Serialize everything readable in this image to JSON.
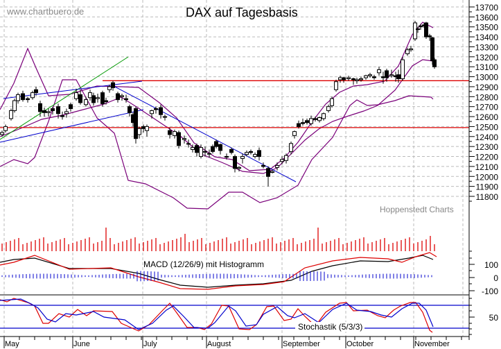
{
  "header": {
    "watermark": "www.chartbuero.de",
    "title": "DAX auf Tagesbasis",
    "source": "Hoppenstedt Charts"
  },
  "colors": {
    "candle": "#000000",
    "bollinger": "#7a007a",
    "trend_blue": "#0000cc",
    "trend_green": "#009900",
    "support_red": "#dd0000",
    "volume": "#dd0000",
    "macd_line": "#000000",
    "signal_line": "#dd0000",
    "histogram": "#0000cc",
    "stoch_k": "#dd0000",
    "stoch_d": "#0000cc",
    "grid": "#bbbbbb"
  },
  "indicators": {
    "macd_label": "MACD (12/26/9) mit Histogramm",
    "stoch_label": "Stochastik (5/3/3)"
  },
  "chart_data": {
    "type": "candlestick",
    "title": "DAX auf Tagesbasis",
    "xlabel": "",
    "ylabel": "",
    "x_ticks": [
      "May",
      "June",
      "July",
      "August",
      "September",
      "October",
      "November"
    ],
    "price_axis": {
      "ticks": [
        13700,
        13600,
        13500,
        13400,
        13300,
        13200,
        13100,
        13000,
        12900,
        12800,
        12700,
        12600,
        12500,
        12400,
        12300,
        12200,
        12100,
        12000,
        11900,
        11800
      ],
      "ylim": [
        11800,
        13700
      ],
      "grid": true
    },
    "macd_axis": {
      "ticks": [
        100,
        0,
        -100
      ]
    },
    "stoch_axis": {
      "ticks": [
        50
      ]
    },
    "horizontal_lines": [
      {
        "name": "resistance",
        "value": 12960,
        "color": "red"
      },
      {
        "name": "support",
        "value": 12490,
        "color": "red"
      }
    ],
    "price_close_approx": [
      {
        "date": "May-start",
        "close": 12430
      },
      {
        "date": "May-mid",
        "close": 12790
      },
      {
        "date": "May-end",
        "close": 12700
      },
      {
        "date": "Jun-mid",
        "close": 12800
      },
      {
        "date": "Jun-peak",
        "close": 12950
      },
      {
        "date": "Jul-start",
        "close": 12480
      },
      {
        "date": "Jul-mid",
        "close": 12600
      },
      {
        "date": "Aug-start",
        "close": 12200
      },
      {
        "date": "Aug-mid",
        "close": 12000
      },
      {
        "date": "Aug-late",
        "close": 12200
      },
      {
        "date": "Aug-low",
        "close": 11880
      },
      {
        "date": "Sep-start",
        "close": 12250
      },
      {
        "date": "Sep-mid",
        "close": 12550
      },
      {
        "date": "Sep-end",
        "close": 12970
      },
      {
        "date": "Oct-mid",
        "close": 12990
      },
      {
        "date": "Oct-end",
        "close": 13250
      },
      {
        "date": "Nov-high",
        "close": 13500
      },
      {
        "date": "Nov-last",
        "close": 13130
      }
    ],
    "stoch_levels": {
      "upper": 80,
      "lower": 20
    },
    "macd_range": [
      -100,
      150
    ]
  },
  "axis": {
    "price_labels": [
      "13700",
      "13600",
      "13500",
      "13400",
      "13300",
      "13200",
      "13100",
      "13000",
      "12900",
      "12800",
      "12700",
      "12600",
      "12500",
      "12400",
      "12300",
      "12200",
      "12100",
      "12000",
      "11900",
      "11800"
    ],
    "macd_labels": [
      "100",
      "0",
      "-100"
    ],
    "stoch_labels": [
      "50"
    ],
    "months": [
      "May",
      "June",
      "July",
      "August",
      "September",
      "October",
      "November"
    ]
  }
}
